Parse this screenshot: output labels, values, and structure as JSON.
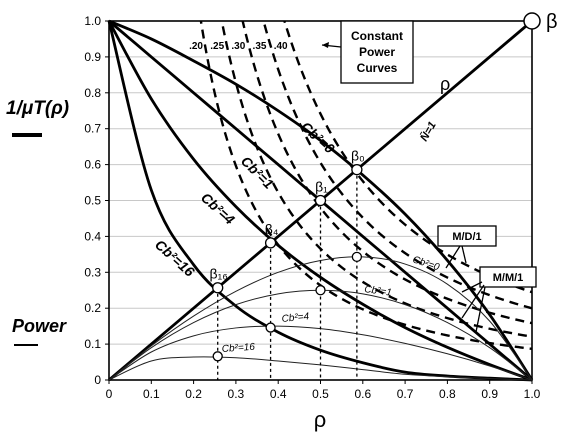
{
  "chart_data": {
    "type": "line",
    "xlabel": "ρ",
    "ylabel_top": "1/μT(ρ)",
    "ylabel_bottom": "Power",
    "corner_label": "β",
    "diag_label": "ρ",
    "xlim": [
      0,
      1.0
    ],
    "ylim": [
      0,
      1.0
    ],
    "x_ticks": [
      "0",
      "0.1",
      "0.2",
      "0.3",
      "0.4",
      "0.5",
      "0.6",
      "0.7",
      "0.8",
      "0.9",
      "1.0"
    ],
    "y_ticks": [
      "0",
      "0.1",
      "0.2",
      "0.3",
      "0.4",
      "0.5",
      "0.6",
      "0.7",
      "0.8",
      "0.9",
      "1.0"
    ],
    "grid": "horizontal",
    "constant_power": {
      "box_label": [
        "Constant",
        "Power",
        "Curves"
      ],
      "values": [
        0.2,
        0.25,
        0.3,
        0.35,
        0.4
      ],
      "labels": [
        ".20",
        ".25",
        ".30",
        ".35",
        ".40"
      ]
    },
    "n_bar_label": "N̄=1",
    "throughput_curves": [
      {
        "cb2": 0,
        "label": "Cb²=0",
        "x": [
          0,
          0.1,
          0.2,
          0.3,
          0.4,
          0.5,
          0.6,
          0.7,
          0.8,
          0.9,
          1.0
        ],
        "y": [
          1.0,
          0.95,
          0.889,
          0.824,
          0.75,
          0.667,
          0.571,
          0.462,
          0.333,
          0.182,
          0
        ]
      },
      {
        "cb2": 1,
        "label": "Cb²=1",
        "x": [
          0,
          0.1,
          0.2,
          0.3,
          0.4,
          0.5,
          0.6,
          0.7,
          0.8,
          0.9,
          1.0
        ],
        "y": [
          1.0,
          0.9,
          0.8,
          0.7,
          0.6,
          0.5,
          0.4,
          0.3,
          0.2,
          0.1,
          0
        ]
      },
      {
        "cb2": 4,
        "label": "Cb²=4",
        "x": [
          0,
          0.1,
          0.2,
          0.3,
          0.4,
          0.5,
          0.6,
          0.7,
          0.8,
          0.9,
          1.0
        ],
        "y": [
          1.0,
          0.783,
          0.615,
          0.483,
          0.375,
          0.286,
          0.211,
          0.146,
          0.091,
          0.043,
          0
        ]
      },
      {
        "cb2": 16,
        "label": "Cb²=16",
        "x": [
          0,
          0.1,
          0.2,
          0.3,
          0.4,
          0.5,
          0.6,
          0.7,
          0.8,
          0.9,
          1.0
        ],
        "y": [
          1.0,
          0.529,
          0.321,
          0.206,
          0.133,
          0.083,
          0.048,
          0.022,
          0.011,
          0.005,
          0
        ]
      }
    ],
    "power_curves": [
      {
        "cb2": 0,
        "label": "Cb²=0",
        "x": [
          0,
          0.1,
          0.2,
          0.3,
          0.4,
          0.5,
          0.6,
          0.7,
          0.8,
          0.9,
          1.0
        ],
        "y": [
          0,
          0.095,
          0.178,
          0.247,
          0.3,
          0.333,
          0.343,
          0.323,
          0.267,
          0.164,
          0
        ]
      },
      {
        "cb2": 1,
        "label": "Cb²=1",
        "x": [
          0,
          0.1,
          0.2,
          0.3,
          0.4,
          0.5,
          0.6,
          0.7,
          0.8,
          0.9,
          1.0
        ],
        "y": [
          0,
          0.09,
          0.16,
          0.21,
          0.24,
          0.25,
          0.24,
          0.21,
          0.16,
          0.09,
          0
        ]
      },
      {
        "cb2": 4,
        "label": "Cb²=4",
        "x": [
          0,
          0.1,
          0.2,
          0.3,
          0.4,
          0.5,
          0.6,
          0.7,
          0.8,
          0.9,
          1.0
        ],
        "y": [
          0,
          0.078,
          0.123,
          0.145,
          0.15,
          0.143,
          0.126,
          0.102,
          0.073,
          0.039,
          0
        ]
      },
      {
        "cb2": 16,
        "label": "Cb²=16",
        "x": [
          0,
          0.1,
          0.2,
          0.3,
          0.4,
          0.5,
          0.6,
          0.7,
          0.8,
          0.9,
          1.0
        ],
        "y": [
          0,
          0.053,
          0.064,
          0.062,
          0.053,
          0.042,
          0.029,
          0.016,
          0.009,
          0.004,
          0
        ]
      }
    ],
    "beta_points": [
      {
        "label": "β₀",
        "x": 0.586,
        "y": 0.586,
        "power_y": 0.343
      },
      {
        "label": "β₁",
        "x": 0.5,
        "y": 0.5,
        "power_y": 0.25
      },
      {
        "label": "β₄",
        "x": 0.382,
        "y": 0.382,
        "power_y": 0.146
      },
      {
        "label": "β₁₆",
        "x": 0.257,
        "y": 0.257,
        "power_y": 0.066
      }
    ],
    "annotations": {
      "md1": "M/D/1",
      "mm1": "M/M/1"
    }
  }
}
